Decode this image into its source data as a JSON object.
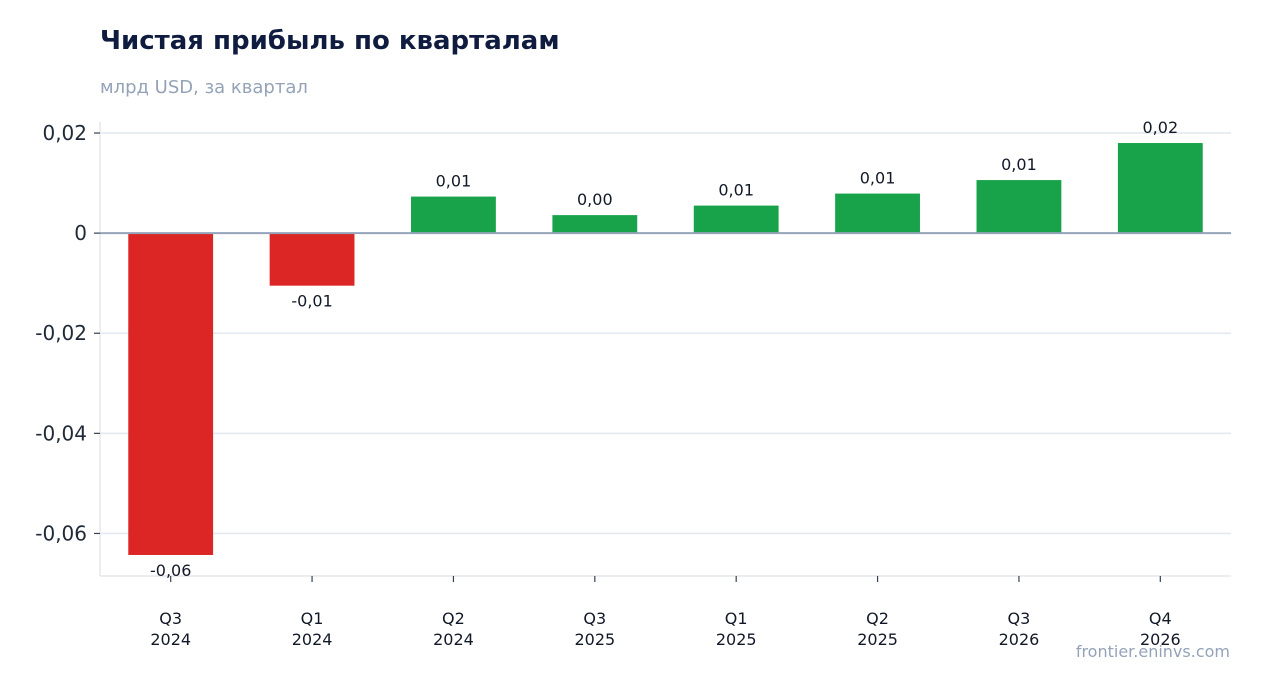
{
  "chart_data": {
    "type": "bar",
    "title": "Чистая прибыль по кварталам",
    "subtitle": "млрд USD, за квартал",
    "categories": [
      [
        "Q3",
        "2024"
      ],
      [
        "Q1",
        "2024"
      ],
      [
        "Q2",
        "2024"
      ],
      [
        "Q3",
        "2025"
      ],
      [
        "Q1",
        "2025"
      ],
      [
        "Q2",
        "2025"
      ],
      [
        "Q3",
        "2026"
      ],
      [
        "Q4",
        "2026"
      ]
    ],
    "values": [
      -0.0643,
      -0.0105,
      0.0073,
      0.0036,
      0.0055,
      0.0079,
      0.0106,
      0.018
    ],
    "data_labels": [
      "-0,06",
      "-0,01",
      "0,01",
      "0,00",
      "0,01",
      "0,01",
      "0,01",
      "0,02"
    ],
    "yticks": [
      0.02,
      0,
      -0.02,
      -0.04,
      -0.06
    ],
    "ytick_labels": [
      "0,02",
      "0",
      "-0,02",
      "-0,04",
      "-0,06"
    ],
    "ylim": [
      -0.0685,
      0.0222
    ],
    "grid": true,
    "colors": {
      "positive": "#18a34a",
      "negative": "#dc2626",
      "zero_line": "#94a3b8",
      "grid": "#e2e8f0",
      "axis": "#e5e7eb",
      "text": "#1f2937"
    }
  },
  "source": "frontier.eninvs.com"
}
